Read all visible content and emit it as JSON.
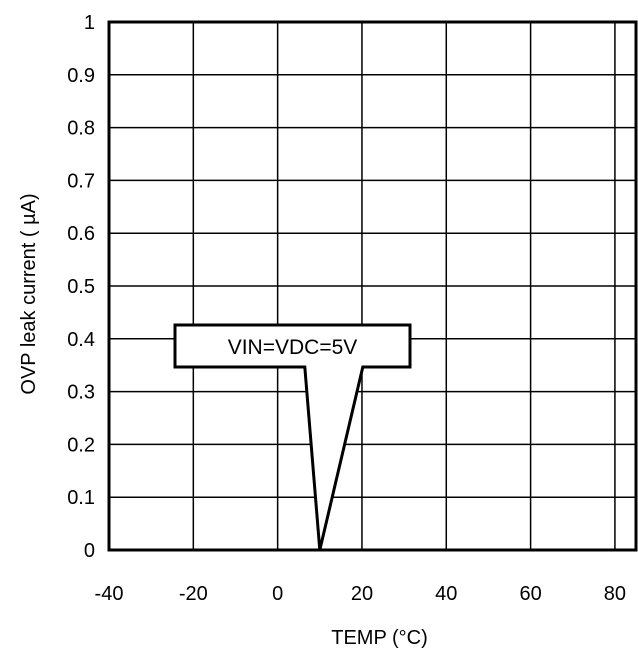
{
  "chart_data": {
    "type": "line",
    "title": "",
    "xlabel": "TEMP (°C)",
    "ylabel": "OVP leak current ( µA)",
    "xlim": [
      -40,
      85
    ],
    "ylim": [
      0,
      1
    ],
    "x_ticks": [
      -40,
      -20,
      0,
      20,
      40,
      60,
      80
    ],
    "x_tick_labels": [
      "-40",
      "-20",
      "0",
      "20",
      "40",
      "60",
      "80"
    ],
    "y_ticks": [
      0,
      0.1,
      0.2,
      0.3,
      0.4,
      0.5,
      0.6,
      0.7,
      0.8,
      0.9,
      1
    ],
    "y_tick_labels": [
      "0",
      "0.1",
      "0.2",
      "0.3",
      "0.4",
      "0.5",
      "0.6",
      "0.7",
      "0.8",
      "0.9",
      "1"
    ],
    "grid": true,
    "legend": "none",
    "series": [
      {
        "x": [
          -40,
          -20,
          0,
          20,
          40,
          60,
          80,
          85
        ],
        "y": [
          0,
          0,
          0,
          0,
          0,
          0,
          0,
          0
        ]
      }
    ],
    "annotations": [
      {
        "text": "VIN=VDC=5V",
        "x": 10,
        "y": 0
      }
    ]
  }
}
